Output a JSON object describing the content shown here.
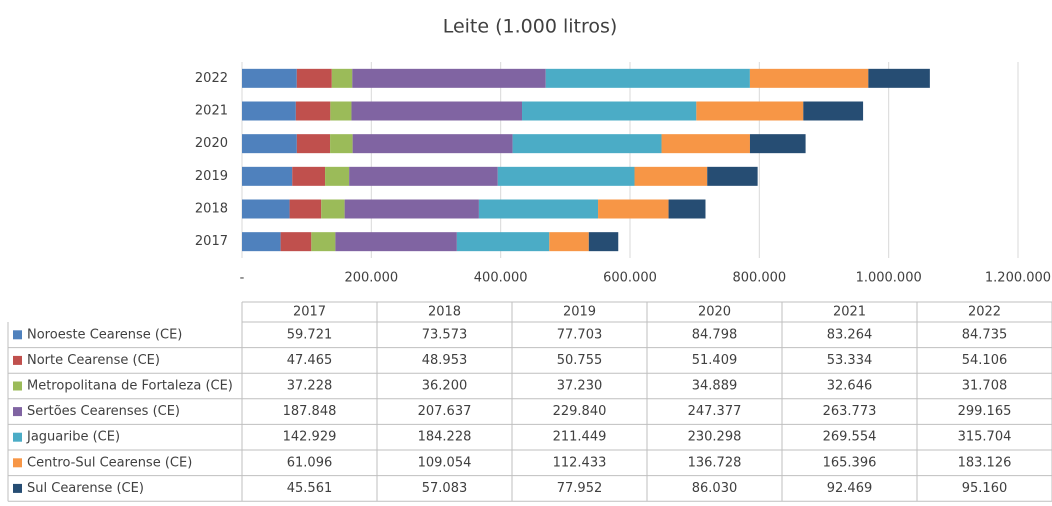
{
  "chart_data": {
    "type": "bar",
    "orientation": "horizontal",
    "stacked": true,
    "title": "Leite (1.000 litros)",
    "categories": [
      "2017",
      "2018",
      "2019",
      "2020",
      "2021",
      "2022"
    ],
    "series": [
      {
        "name": "Noroeste Cearense (CE)",
        "color": "#4f81bd",
        "values": [
          59721,
          73573,
          77703,
          84798,
          83264,
          84735
        ],
        "value_labels": [
          "59.721",
          "73.573",
          "77.703",
          "84.798",
          "83.264",
          "84.735"
        ]
      },
      {
        "name": "Norte Cearense (CE)",
        "color": "#c0504d",
        "values": [
          47465,
          48953,
          50755,
          51409,
          53334,
          54106
        ],
        "value_labels": [
          "47.465",
          "48.953",
          "50.755",
          "51.409",
          "53.334",
          "54.106"
        ]
      },
      {
        "name": "Metropolitana de Fortaleza (CE)",
        "color": "#9bbb59",
        "values": [
          37228,
          36200,
          37230,
          34889,
          32646,
          31708
        ],
        "value_labels": [
          "37.228",
          "36.200",
          "37.230",
          "34.889",
          "32.646",
          "31.708"
        ]
      },
      {
        "name": "Sertões Cearenses (CE)",
        "color": "#8064a2",
        "values": [
          187848,
          207637,
          229840,
          247377,
          263773,
          299165
        ],
        "value_labels": [
          "187.848",
          "207.637",
          "229.840",
          "247.377",
          "263.773",
          "299.165"
        ]
      },
      {
        "name": "Jaguaribe (CE)",
        "color": "#4bacc6",
        "values": [
          142929,
          184228,
          211449,
          230298,
          269554,
          315704
        ],
        "value_labels": [
          "142.929",
          "184.228",
          "211.449",
          "230.298",
          "269.554",
          "315.704"
        ]
      },
      {
        "name": "Centro-Sul Cearense (CE)",
        "color": "#f79646",
        "values": [
          61096,
          109054,
          112433,
          136728,
          165396,
          183126
        ],
        "value_labels": [
          "61.096",
          "109.054",
          "112.433",
          "136.728",
          "165.396",
          "183.126"
        ]
      },
      {
        "name": "Sul Cearense (CE)",
        "color": "#264d73",
        "values": [
          45561,
          57083,
          77952,
          86030,
          92469,
          95160
        ],
        "value_labels": [
          "45.561",
          "57.083",
          "77.952",
          "86.030",
          "92.469",
          "95.160"
        ]
      }
    ],
    "xlim": [
      0,
      1200000
    ],
    "xticks": [
      {
        "value": 0,
        "label": "-"
      },
      {
        "value": 200000,
        "label": "200.000"
      },
      {
        "value": 400000,
        "label": "400.000"
      },
      {
        "value": 600000,
        "label": "600.000"
      },
      {
        "value": 800000,
        "label": "800.000"
      },
      {
        "value": 1000000,
        "label": "1.000.000"
      },
      {
        "value": 1200000,
        "label": "1.200.000"
      }
    ],
    "grid": true
  }
}
